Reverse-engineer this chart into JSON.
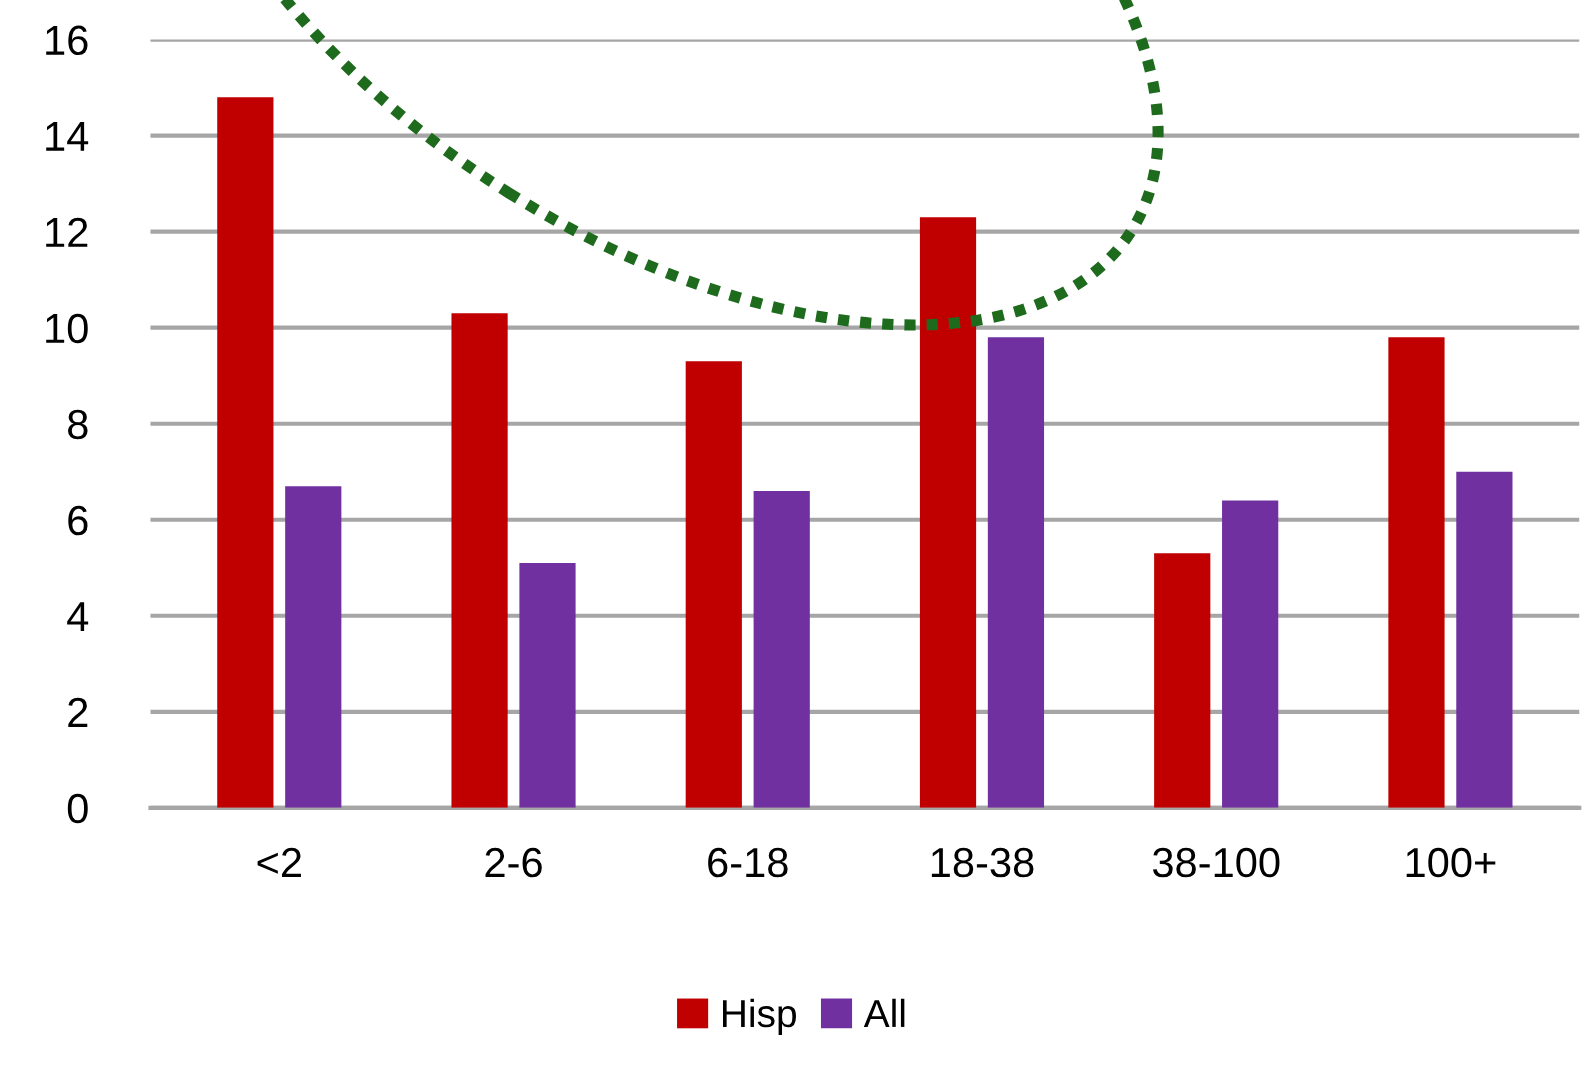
{
  "chart_data": {
    "type": "bar",
    "categories": [
      "<2",
      "2-6",
      "6-18",
      "18-38",
      "38-100",
      "100+"
    ],
    "series": [
      {
        "name": "Hisp",
        "color": "#c00000",
        "values": [
          14.8,
          10.3,
          9.3,
          12.3,
          5.3,
          9.8
        ]
      },
      {
        "name": "All",
        "color": "#7030a0",
        "values": [
          6.7,
          5.1,
          6.6,
          9.8,
          6.4,
          7.0
        ]
      }
    ],
    "ylim": [
      0,
      16
    ],
    "yticks": [
      0,
      2,
      4,
      6,
      8,
      10,
      12,
      14,
      16
    ],
    "grid": "y",
    "legend": "bottom"
  }
}
